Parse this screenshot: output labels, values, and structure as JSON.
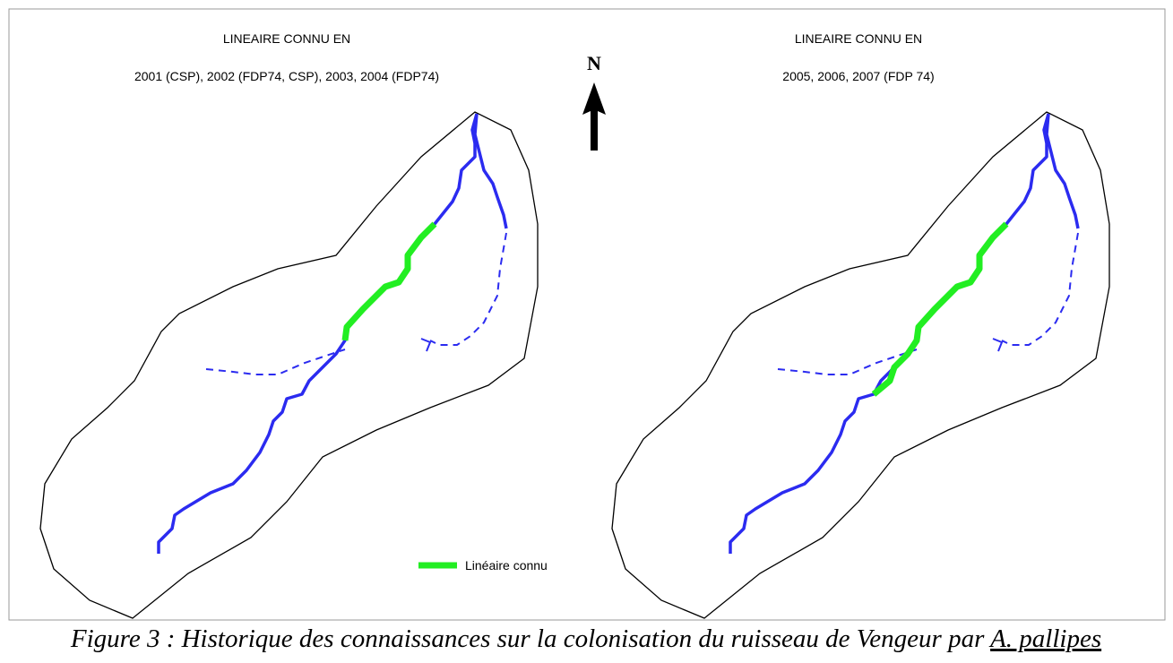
{
  "panels": [
    {
      "heading": "LINEAIRE CONNU EN",
      "years": "2001 (CSP), 2002 (FDP74, CSP), 2003, 2004 (FDP74)"
    },
    {
      "heading": "LINEAIRE CONNU EN",
      "years": "2005, 2006, 2007 (FDP 74)"
    }
  ],
  "north": "N",
  "legend": {
    "label": "Linéaire connu"
  },
  "caption": {
    "text": "Figure 3 : Historique des connaissances sur la colonisation du ruisseau de Vengeur par ",
    "species": "A. pallipes"
  }
}
